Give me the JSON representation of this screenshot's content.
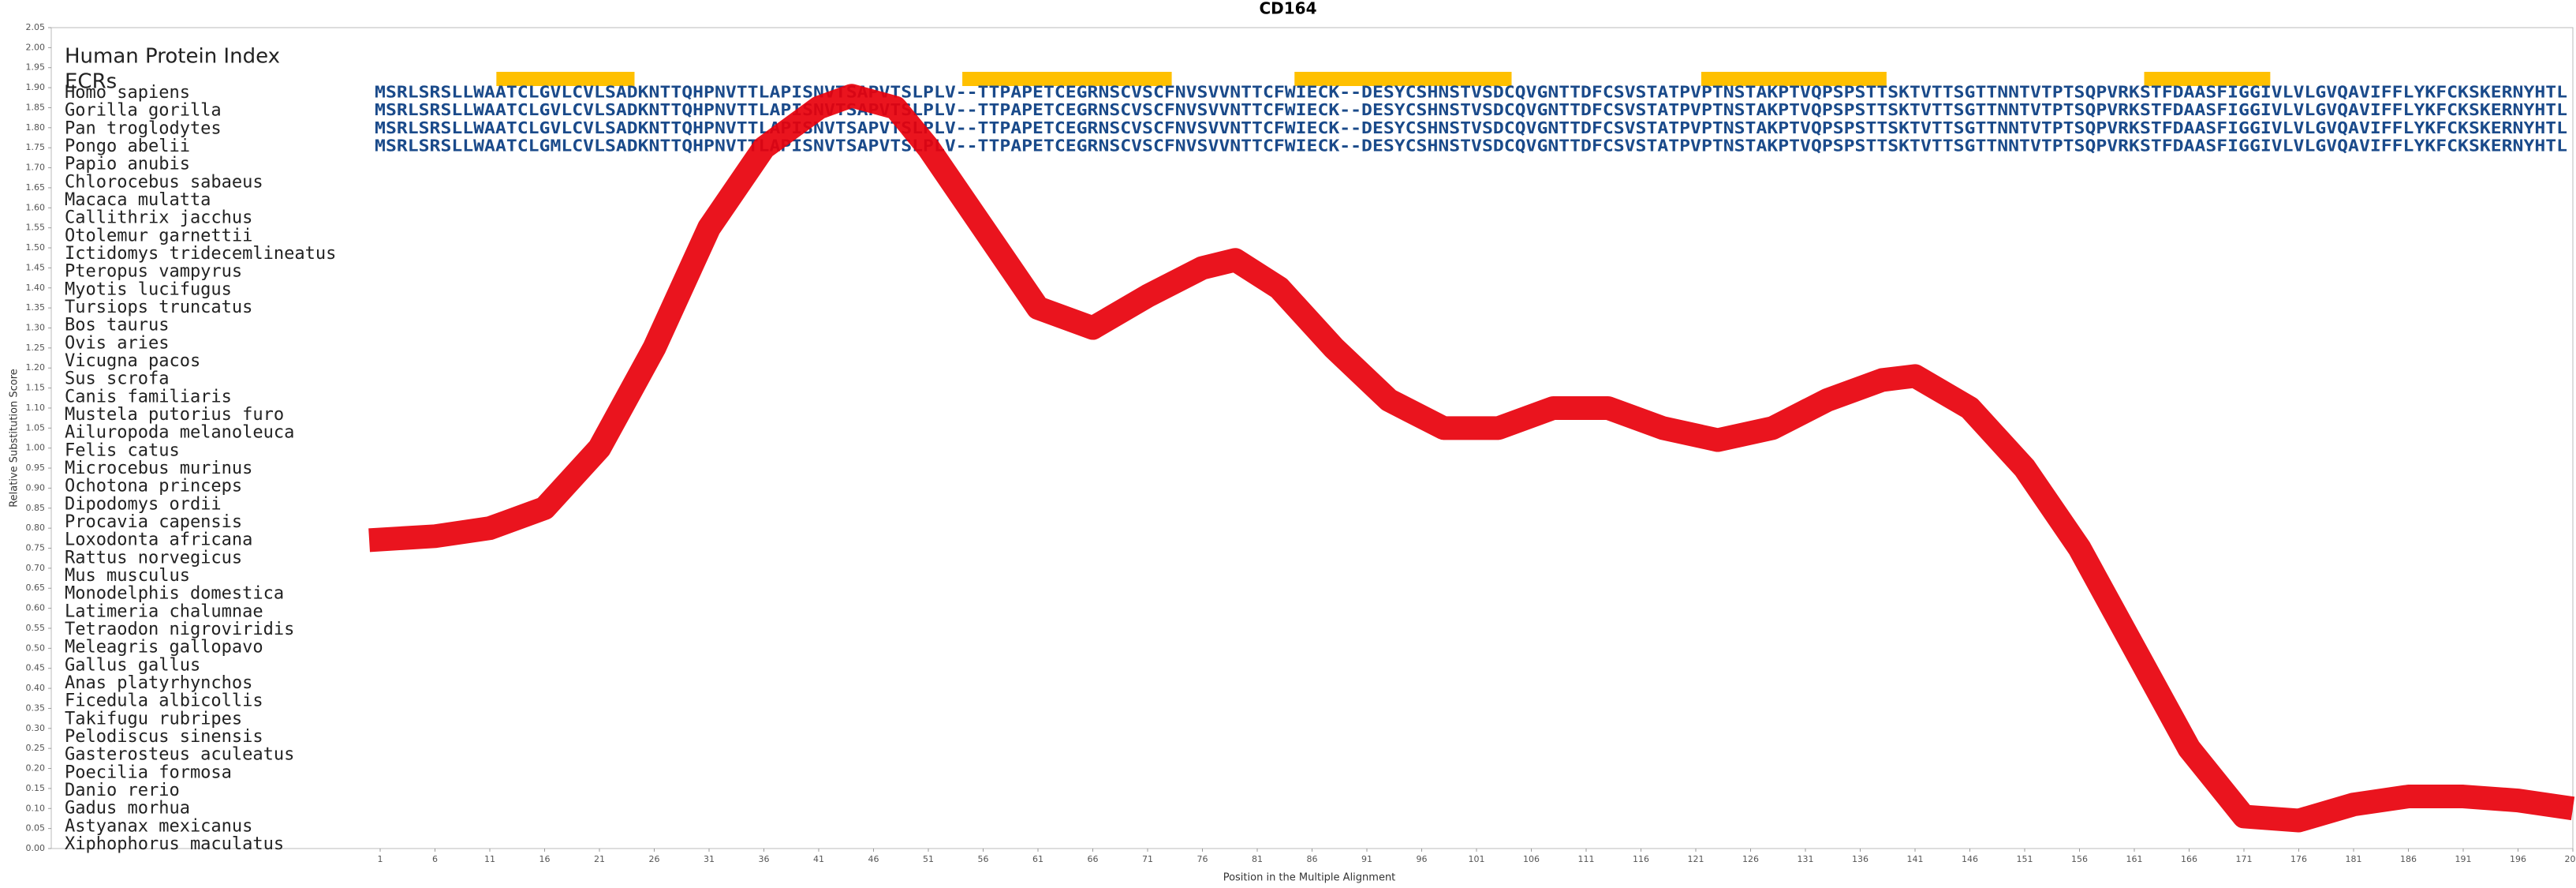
{
  "chart_data": {
    "type": "line",
    "title": "CD164",
    "y_label": "Relative Substitution Score",
    "x_label": "Position in the Multiple Alignment",
    "index_label": "Human Protein Index",
    "ecr_label": "ECRs",
    "xlim": [
      -29,
      201
    ],
    "ylim": [
      0,
      2.05
    ],
    "xticks": [
      1,
      6,
      11,
      16,
      21,
      26,
      31,
      36,
      41,
      46,
      51,
      56,
      61,
      66,
      71,
      76,
      81,
      86,
      91,
      96,
      101,
      106,
      111,
      116,
      121,
      126,
      131,
      136,
      141,
      146,
      151,
      156,
      161,
      166,
      171,
      176,
      181,
      186,
      191,
      196,
      201
    ],
    "yticks": [
      {
        "value": 0,
        "label": "0.00"
      },
      {
        "value": 0.05,
        "label": "0.05"
      },
      {
        "value": 0.1,
        "label": "0.10"
      },
      {
        "value": 0.15,
        "label": "0.15"
      },
      {
        "value": 0.2,
        "label": "0.20"
      },
      {
        "value": 0.25,
        "label": "0.25"
      },
      {
        "value": 0.3,
        "label": "0.30"
      },
      {
        "value": 0.35,
        "label": "0.35"
      },
      {
        "value": 0.4,
        "label": "0.40"
      },
      {
        "value": 0.45,
        "label": "0.45"
      },
      {
        "value": 0.5,
        "label": "0.50"
      },
      {
        "value": 0.55,
        "label": "0.55"
      },
      {
        "value": 0.6,
        "label": "0.60"
      },
      {
        "value": 0.65,
        "label": "0.65"
      },
      {
        "value": 0.7,
        "label": "0.70"
      },
      {
        "value": 0.75,
        "label": "0.75"
      },
      {
        "value": 0.8,
        "label": "0.80"
      },
      {
        "value": 0.85,
        "label": "0.85"
      },
      {
        "value": 0.9,
        "label": "0.90"
      },
      {
        "value": 0.95,
        "label": "0.95"
      },
      {
        "value": 1,
        "label": "1.00"
      },
      {
        "value": 1.05,
        "label": "1.05"
      },
      {
        "value": 1.1,
        "label": "1.10"
      },
      {
        "value": 1.15,
        "label": "1.15"
      },
      {
        "value": 1.2,
        "label": "1.20"
      },
      {
        "value": 1.25,
        "label": "1.25"
      },
      {
        "value": 1.3,
        "label": "1.30"
      },
      {
        "value": 1.35,
        "label": "1.35"
      },
      {
        "value": 1.4,
        "label": "1.40"
      },
      {
        "value": 1.45,
        "label": "1.45"
      },
      {
        "value": 1.5,
        "label": "1.50"
      },
      {
        "value": 1.55,
        "label": "1.55"
      },
      {
        "value": 1.6,
        "label": "1.60"
      },
      {
        "value": 1.65,
        "label": "1.65"
      },
      {
        "value": 1.7,
        "label": "1.70"
      },
      {
        "value": 1.75,
        "label": "1.75"
      },
      {
        "value": 1.8,
        "label": "1.80"
      },
      {
        "value": 1.85,
        "label": "1.85"
      },
      {
        "value": 1.9,
        "label": "1.90"
      },
      {
        "value": 1.95,
        "label": "1.95"
      },
      {
        "value": 2,
        "label": "2.00"
      },
      {
        "value": 2.05,
        "label": "2.05"
      }
    ],
    "curve": {
      "color": "#e8000b",
      "x": [
        0,
        6,
        11,
        16,
        21,
        26,
        31,
        36,
        41,
        44,
        48,
        51,
        56,
        61,
        66,
        71,
        76,
        79,
        83,
        88,
        93,
        98,
        103,
        108,
        113,
        118,
        123,
        128,
        133,
        138,
        141,
        146,
        151,
        156,
        161,
        166,
        171,
        176,
        181,
        186,
        191,
        196,
        201
      ],
      "values": [
        0.77,
        0.78,
        0.8,
        0.85,
        1.0,
        1.25,
        1.55,
        1.75,
        1.85,
        1.88,
        1.85,
        1.75,
        1.55,
        1.35,
        1.3,
        1.38,
        1.45,
        1.47,
        1.4,
        1.25,
        1.12,
        1.05,
        1.05,
        1.1,
        1.1,
        1.05,
        1.02,
        1.05,
        1.12,
        1.17,
        1.18,
        1.1,
        0.95,
        0.75,
        0.5,
        0.25,
        0.08,
        0.07,
        0.11,
        0.13,
        0.13,
        0.12,
        0.1
      ]
    },
    "ecr_color": "#ffc000",
    "ecrs": [
      [
        11.6,
        24.2
      ],
      [
        54.1,
        73.2
      ],
      [
        84.4,
        104.2
      ],
      [
        121.5,
        138.4
      ],
      [
        161.9,
        173.4
      ]
    ],
    "sequence_color": "#1a4a8a",
    "rows": [
      {
        "species": "Homo sapiens",
        "sequence": "MSRLSRSLLWAATCLGVLCVLSADKNTTQHPNVTTLAPISNVTSAPVTSLPLV--TTPAPETCEGRNSCVSCFNVSVVNTTCFWIECK--DESYCSHNSTVSDCQVGNTTDFCSVSTATPVPTNSTAKPTVQPSPSTTSKTVTTSGTTNNTVTPTSQPVRKSTFDAASFIGGIVLVLGVQAVIFFLYKFCKSKERNYHTL"
      },
      {
        "species": "Gorilla gorilla",
        "sequence": "MSRLSRSLLWAATCLGVLCVLSADKNTTQHPNVTTLAPISNVTSAPVTSLPLV--TTPAPETCEGRNSCVSCFNVSVVNTTCFWIECK--DESYCSHNSTVSDCQVGNTTDFCSVSTATPVPTNSTAKPTVQPSPSTTSKTVTTSGTTNNTVTPTSQPVRKSTFDAASFIGGIVLVLGVQAVIFFLYKFCKSKERNYHTL"
      },
      {
        "species": "Pan troglodytes",
        "sequence": "MSRLSRSLLWAATCLGVLCVLSADKNTTQHPNVTTLAPISNVTSAPVTSLPLV--TTPAPETCEGRNSCVSCFNVSVVNTTCFWIECK--DESYCSHNSTVSDCQVGNTTDFCSVSTATPVPTNSTAKPTVQPSPSTTSKTVTTSGTTNNTVTPTSQPVRKSTFDAASFIGGIVLVLGVQAVIFFLYKFCKSKERNYHTL"
      },
      {
        "species": "Pongo abelii",
        "sequence": "MSRLSRSLLWAATCLGMLCVLSADKNTTQHPNVTTLAPISNVTSAPVTSLPLV--TTPAPETCEGRNSCVSCFNVSVVNTTCFWIECK--DESYCSHNSTVSDCQVGNTTDFCSVSTATPVPTNSTAKPTVQPSPSTTSKTVTTSGTTNNTVTPTSQPVRKSTFDAASFIGGIVLVLGVQAVIFFLYKFCKSKERNYHTL"
      },
      {
        "species": "Papio anubis"
      },
      {
        "species": "Chlorocebus sabaeus"
      },
      {
        "species": "Macaca mulatta"
      },
      {
        "species": "Callithrix jacchus"
      },
      {
        "species": "Otolemur garnettii"
      },
      {
        "species": "Ictidomys tridecemlineatus"
      },
      {
        "species": "Pteropus vampyrus"
      },
      {
        "species": "Myotis lucifugus"
      },
      {
        "species": "Tursiops truncatus"
      },
      {
        "species": "Bos taurus"
      },
      {
        "species": "Ovis aries"
      },
      {
        "species": "Vicugna pacos"
      },
      {
        "species": "Sus scrofa"
      },
      {
        "species": "Canis familiaris"
      },
      {
        "species": "Mustela putorius furo"
      },
      {
        "species": "Ailuropoda melanoleuca"
      },
      {
        "species": "Felis catus"
      },
      {
        "species": "Microcebus murinus"
      },
      {
        "species": "Ochotona princeps"
      },
      {
        "species": "Dipodomys ordii"
      },
      {
        "species": "Procavia capensis"
      },
      {
        "species": "Loxodonta africana"
      },
      {
        "species": "Rattus norvegicus"
      },
      {
        "species": "Mus musculus"
      },
      {
        "species": "Monodelphis domestica"
      },
      {
        "species": "Latimeria chalumnae"
      },
      {
        "species": "Tetraodon nigroviridis"
      },
      {
        "species": "Meleagris gallopavo"
      },
      {
        "species": "Gallus gallus"
      },
      {
        "species": "Anas platyrhynchos"
      },
      {
        "species": "Ficedula albicollis"
      },
      {
        "species": "Takifugu rubripes"
      },
      {
        "species": "Pelodiscus sinensis"
      },
      {
        "species": "Gasterosteus aculeatus"
      },
      {
        "species": "Poecilia formosa"
      },
      {
        "species": "Danio rerio"
      },
      {
        "species": "Gadus morhua"
      },
      {
        "species": "Astyanax mexicanus"
      },
      {
        "species": "Xiphophorus maculatus"
      }
    ]
  }
}
